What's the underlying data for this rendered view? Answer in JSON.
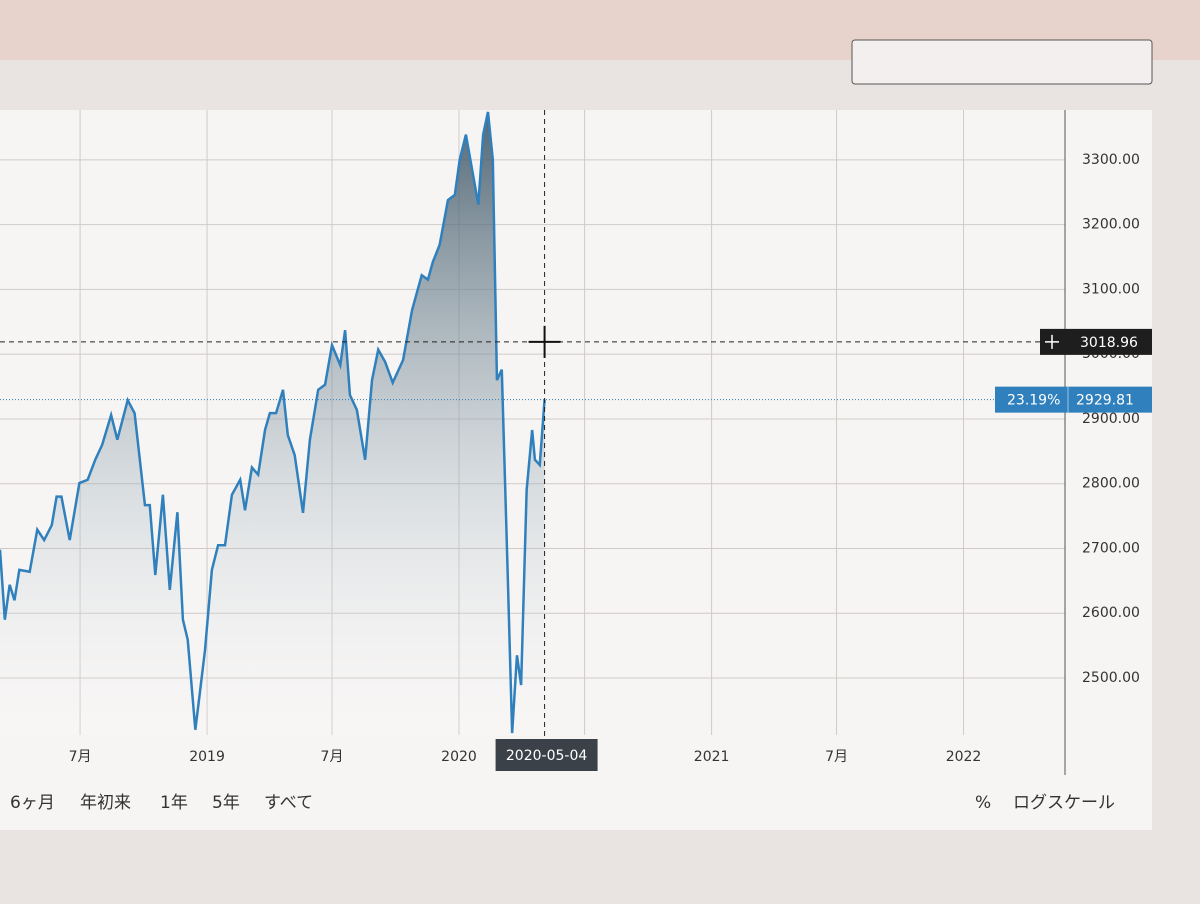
{
  "chart_data": {
    "type": "area",
    "x": [
      "2018-03-07",
      "2018-03-14",
      "2018-03-21",
      "2018-03-28",
      "2018-04-04",
      "2018-04-19",
      "2018-04-30",
      "2018-05-10",
      "2018-05-21",
      "2018-05-28",
      "2018-06-04",
      "2018-06-16",
      "2018-06-30",
      "2018-07-12",
      "2018-07-23",
      "2018-08-02",
      "2018-08-15",
      "2018-08-24",
      "2018-09-08",
      "2018-09-18",
      "2018-10-03",
      "2018-10-10",
      "2018-10-18",
      "2018-10-29",
      "2018-11-08",
      "2018-11-19",
      "2018-11-27",
      "2018-12-04",
      "2018-12-15",
      "2018-12-22",
      "2018-12-29",
      "2019-01-08",
      "2019-01-17",
      "2019-01-27",
      "2019-02-06",
      "2019-02-18",
      "2019-02-25",
      "2019-03-07",
      "2019-03-16",
      "2019-03-26",
      "2019-04-02",
      "2019-04-11",
      "2019-04-21",
      "2019-04-28",
      "2019-05-08",
      "2019-05-20",
      "2019-05-30",
      "2019-06-11",
      "2019-06-21",
      "2019-07-01",
      "2019-07-13",
      "2019-07-20",
      "2019-07-27",
      "2019-08-06",
      "2019-08-18",
      "2019-08-28",
      "2019-09-06",
      "2019-09-16",
      "2019-09-27",
      "2019-10-12",
      "2019-10-25",
      "2019-11-08",
      "2019-11-17",
      "2019-11-24",
      "2019-12-04",
      "2019-12-16",
      "2019-12-26",
      "2020-01-02",
      "2020-01-11",
      "2020-01-20",
      "2020-01-29",
      "2020-02-05",
      "2020-02-12",
      "2020-02-19",
      "2020-02-25",
      "2020-03-03",
      "2020-03-11",
      "2020-03-18",
      "2020-03-25",
      "2020-03-31",
      "2020-04-08",
      "2020-04-16",
      "2020-04-20",
      "2020-04-27",
      "2020-05-04"
    ],
    "series": [
      {
        "color": "#2f80bd",
        "values": [
          2698,
          2590,
          2644,
          2620,
          2667,
          2664,
          2729,
          2713,
          2736,
          2780,
          2780,
          2713,
          2801,
          2806,
          2837,
          2860,
          2906,
          2868,
          2929,
          2909,
          2767,
          2767,
          2659,
          2783,
          2636,
          2756,
          2590,
          2559,
          2420,
          2481,
          2543,
          2667,
          2705,
          2705,
          2783,
          2806,
          2759,
          2825,
          2814,
          2883,
          2909,
          2909,
          2945,
          2875,
          2844,
          2755,
          2868,
          2945,
          2953,
          3014,
          2983,
          3037,
          2937,
          2914,
          2837,
          2960,
          3007,
          2988,
          2956,
          2991,
          3068,
          3122,
          3115,
          3142,
          3169,
          3238,
          3246,
          3300,
          3339,
          3285,
          3231,
          3339,
          3374,
          3300,
          2960,
          2976,
          2682,
          2415,
          2535,
          2489,
          2790,
          2883,
          2837,
          2829,
          2929.81
        ]
      }
    ],
    "xlim": [
      "2018-03-07",
      "2022-05-28"
    ],
    "xticks": [
      {
        "value": "2018-07-01",
        "label": "7月"
      },
      {
        "value": "2019-01-01",
        "label": "2019"
      },
      {
        "value": "2019-07-01",
        "label": "7月"
      },
      {
        "value": "2020-01-01",
        "label": "2020"
      },
      {
        "value": "2020-07-01",
        "label": "7月"
      },
      {
        "value": "2021-01-01",
        "label": "2021"
      },
      {
        "value": "2021-07-01",
        "label": "7月"
      },
      {
        "value": "2022-01-01",
        "label": "2022"
      }
    ],
    "ylim": [
      2412,
      3377
    ],
    "yticks": [
      {
        "value": 2500,
        "label": "2500.00"
      },
      {
        "value": 2600,
        "label": "2600.00"
      },
      {
        "value": 2700,
        "label": "2700.00"
      },
      {
        "value": 2800,
        "label": "2800.00"
      },
      {
        "value": 2900,
        "label": "2900.00"
      },
      {
        "value": 3000,
        "label": "3000.00"
      },
      {
        "value": 3100,
        "label": "3100.00"
      },
      {
        "value": 3200,
        "label": "3200.00"
      },
      {
        "value": 3300,
        "label": "3300.00"
      }
    ],
    "grid": true,
    "crosshair": {
      "x": "2020-05-04",
      "y": 3018.96
    },
    "change_label": "23.19%",
    "range_buttons": [
      "6ヶ月",
      "年初来",
      "1年",
      "5年",
      "すべて"
    ],
    "options": [
      "%",
      "ログスケール"
    ]
  }
}
